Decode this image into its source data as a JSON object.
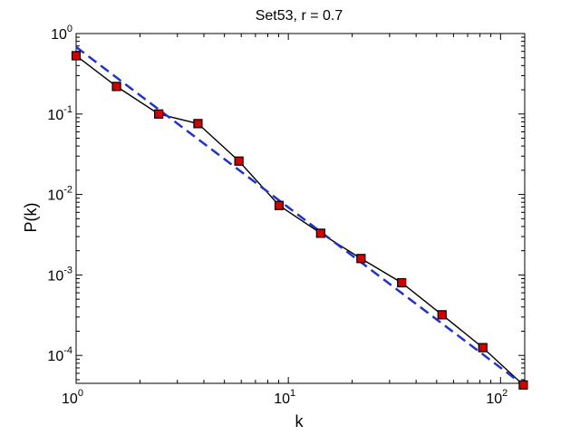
{
  "chart_data": {
    "type": "line",
    "title": "Set53, r = 0.7",
    "xlabel": "k",
    "ylabel": "P(k)",
    "xscale": "log",
    "yscale": "log",
    "xlim": [
      1,
      130
    ],
    "ylim": [
      4.5e-05,
      1
    ],
    "grid": false,
    "legend": "none",
    "x_ticks": [
      {
        "base": "10",
        "exp": "0",
        "value": 1
      },
      {
        "base": "10",
        "exp": "1",
        "value": 10
      },
      {
        "base": "10",
        "exp": "2",
        "value": 100
      }
    ],
    "y_ticks": [
      {
        "base": "10",
        "exp": "0",
        "value": 1
      },
      {
        "base": "10",
        "exp": "-1",
        "value": 0.1
      },
      {
        "base": "10",
        "exp": "-2",
        "value": 0.01
      },
      {
        "base": "10",
        "exp": "-3",
        "value": 0.001
      },
      {
        "base": "10",
        "exp": "-4",
        "value": 0.0001
      }
    ],
    "series": [
      {
        "style": "solid-line-square-markers",
        "line_color": "#000000",
        "marker_color": "#d40000",
        "x": [
          1,
          1.55,
          2.45,
          3.75,
          5.85,
          9.05,
          14.2,
          22.0,
          34.2,
          53.0,
          82.5,
          128.0
        ],
        "y": [
          0.53,
          0.22,
          0.1,
          0.076,
          0.026,
          0.0073,
          0.0033,
          0.0016,
          0.0008,
          0.00032,
          0.000125,
          4.3e-05
        ]
      },
      {
        "style": "dashed-fit-line",
        "line_color": "#1f2fd6",
        "x": [
          1,
          128.0
        ],
        "y": [
          0.68,
          4.3e-05
        ]
      }
    ]
  }
}
